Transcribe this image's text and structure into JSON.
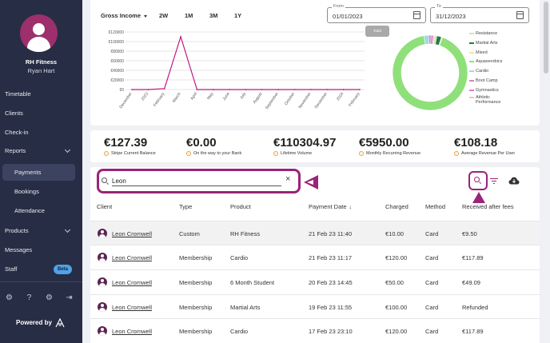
{
  "sidebar": {
    "business_name": "RH Fitness",
    "user_name": "Ryan Hart",
    "items": [
      {
        "label": "Timetable"
      },
      {
        "label": "Clients"
      },
      {
        "label": "Check-in"
      },
      {
        "label": "Reports"
      },
      {
        "label": "Payments"
      },
      {
        "label": "Bookings"
      },
      {
        "label": "Attendance"
      },
      {
        "label": "Products"
      },
      {
        "label": "Messages"
      },
      {
        "label": "Staff"
      }
    ],
    "beta_badge": "Beta",
    "powered_by": "Powered by"
  },
  "chart_controls": {
    "period_label": "Gross Income",
    "ranges": [
      "2W",
      "1M",
      "3M",
      "1Y"
    ],
    "from_label": "From",
    "from_value": "01/01/2023",
    "to_label": "To",
    "to_value": "31/12/2023",
    "total_tab": "Total"
  },
  "chart_data": [
    {
      "type": "line",
      "x": [
        "December",
        "2023",
        "February",
        "March",
        "April",
        "May",
        "June",
        "July",
        "August",
        "September",
        "October",
        "November",
        "December",
        "2024",
        "February"
      ],
      "y_ticks": [
        "€0",
        "€20000",
        "€40000",
        "€60000",
        "€80000",
        "€100000",
        "€120000"
      ],
      "ylim": [
        0,
        120000
      ],
      "series": [
        {
          "color": "#c2187f",
          "values": [
            0,
            0,
            2000,
            110000,
            0,
            0,
            0,
            0,
            0,
            0,
            0,
            0,
            0,
            0,
            0
          ]
        }
      ]
    },
    {
      "type": "pie",
      "labels": [
        "Resistance",
        "Martial Arts",
        "Mixed",
        "Aquaserobics",
        "Cardio",
        "Boot Camp",
        "Gymnastics",
        "Athletic Performance"
      ],
      "values": [
        1,
        2,
        0.5,
        92,
        2,
        1,
        1,
        0.5
      ],
      "colors": [
        "#cfe8a9",
        "#1e7d4a",
        "#f7e09c",
        "#8fe07a",
        "#9ed8e8",
        "#c98bb8",
        "#e57ac8",
        "#f1c8a8"
      ]
    }
  ],
  "stats": [
    {
      "value": "€127.39",
      "caption": "Stripe Current Balance"
    },
    {
      "value": "€0.00",
      "caption": "On the way to your Bank"
    },
    {
      "value": "€110304.97",
      "caption": "Lifetime Volume"
    },
    {
      "value": "€5950.00",
      "caption": "Monthly Recurring Revenue"
    },
    {
      "value": "€108.18",
      "caption": "Average Revenue Per User"
    }
  ],
  "search": {
    "value": "Leon"
  },
  "table": {
    "headers": {
      "client": "Client",
      "type": "Type",
      "product": "Product",
      "date": "Payment Date",
      "charged": "Charged",
      "method": "Method",
      "received": "Received after fees"
    },
    "rows": [
      {
        "client": "Leon Cromwell",
        "type": "Custom",
        "product": "RH Fitness",
        "date": "21 Feb 23 11:40",
        "charged": "€10.00",
        "method": "Card",
        "received": "€9.50"
      },
      {
        "client": "Leon Cromwell",
        "type": "Membership",
        "product": "Cardio",
        "date": "21 Feb 23 11:17",
        "charged": "€120.00",
        "method": "Card",
        "received": "€117.89"
      },
      {
        "client": "Leon Cromwell",
        "type": "Membership",
        "product": "6 Month Student",
        "date": "20 Feb 23 14:45",
        "charged": "€50.00",
        "method": "Card",
        "received": "€49.09"
      },
      {
        "client": "Leon Cromwell",
        "type": "Membership",
        "product": "Martial Arts",
        "date": "19 Feb 23 11:55",
        "charged": "€100.00",
        "method": "Card",
        "received": "Refunded"
      },
      {
        "client": "Leon Cromwell",
        "type": "Membership",
        "product": "Cardio",
        "date": "17 Feb 23 23:10",
        "charged": "€120.00",
        "method": "Card",
        "received": "€117.89"
      }
    ]
  }
}
